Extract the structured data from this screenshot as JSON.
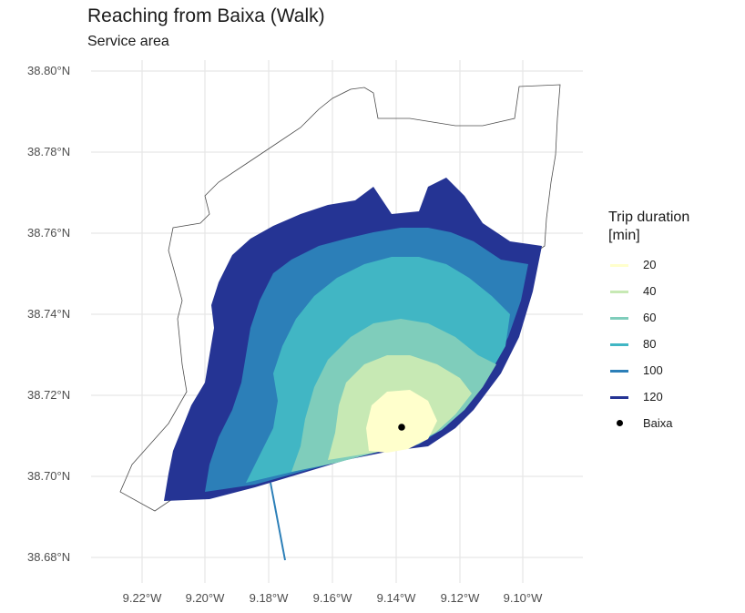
{
  "title": "Reaching from Baixa (Walk)",
  "subtitle": "Service area",
  "y_axis": {
    "ticks": [
      "38.80°N",
      "38.78°N",
      "38.76°N",
      "38.74°N",
      "38.72°N",
      "38.70°N",
      "38.68°N"
    ]
  },
  "x_axis": {
    "ticks": [
      "9.22°W",
      "9.20°W",
      "9.18°W",
      "9.16°W",
      "9.14°W",
      "9.12°W",
      "9.10°W"
    ]
  },
  "legend": {
    "title_line1": "Trip duration",
    "title_line2": "[min]",
    "items": [
      {
        "label": "20",
        "color": "#ffffcc"
      },
      {
        "label": "40",
        "color": "#c7e9b4"
      },
      {
        "label": "60",
        "color": "#7fcdbb"
      },
      {
        "label": "80",
        "color": "#41b6c4"
      },
      {
        "label": "100",
        "color": "#2c7fb8"
      },
      {
        "label": "120",
        "color": "#253494"
      }
    ],
    "point_label": "Baixa"
  },
  "map": {
    "grid": true,
    "point": {
      "name": "Baixa",
      "lon": -9.137,
      "lat": 38.712
    }
  }
}
